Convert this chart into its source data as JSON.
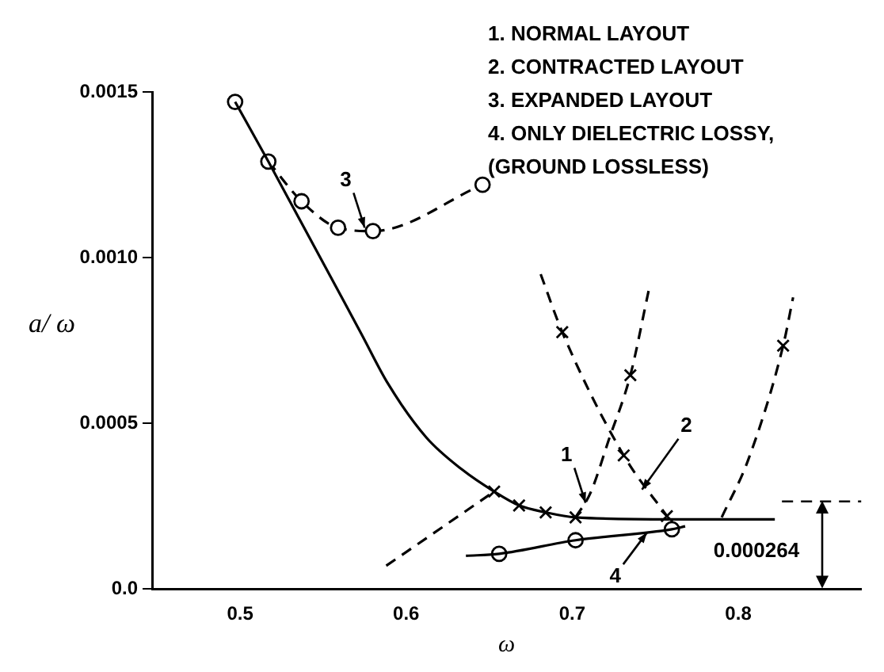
{
  "chart_data": {
    "type": "line",
    "xlabel": "ω",
    "ylabel": "a/ ω",
    "xlim": [
      0.447,
      0.874
    ],
    "xticks": [
      0.5,
      0.6,
      0.7,
      0.8
    ],
    "ylim": [
      0,
      0.0015
    ],
    "yticks": [
      {
        "value": 0,
        "label": "0.0"
      },
      0.0005,
      {
        "value": 0.001,
        "label": "0.0010"
      },
      0.0015
    ],
    "grid": false,
    "legend": false,
    "series": [
      {
        "type": "line",
        "color": "#000000",
        "marker": "none",
        "line_style": "solid",
        "x": [
          0.497,
          0.517,
          0.573,
          0.589,
          0.612,
          0.634,
          0.653,
          0.668,
          0.684,
          0.702,
          0.76,
          0.822
        ],
        "values": [
          0.00147,
          0.00129,
          0.00077,
          0.00062,
          0.000458,
          0.000359,
          0.000294,
          0.000252,
          0.000231,
          0.000216,
          0.00021,
          0.00021
        ]
      },
      {
        "type": "line",
        "color": "#000000",
        "marker": "circle",
        "line_style": "dashed",
        "x": [
          0.517,
          0.537,
          0.559,
          0.58,
          0.646
        ],
        "values": [
          0.00129,
          0.00117,
          0.00109,
          0.00108,
          0.00122
        ]
      },
      {
        "type": "line",
        "color": "#000000",
        "marker": "none",
        "line_style": "dashed",
        "x": [
          0.702,
          0.711,
          0.722,
          0.735,
          0.746
        ],
        "values": [
          0.000216,
          0.00029,
          0.00045,
          0.000645,
          0.0009
        ]
      },
      {
        "type": "line",
        "color": "#000000",
        "marker": "none",
        "line_style": "dashed",
        "x": [
          0.681,
          0.694,
          0.731,
          0.757
        ],
        "values": [
          0.00095,
          0.000775,
          0.000403,
          0.00022
        ]
      },
      {
        "type": "line",
        "color": "#000000",
        "marker": "none",
        "line_style": "dashed",
        "x": [
          0.79,
          0.806,
          0.827,
          0.833
        ],
        "values": [
          0.000216,
          0.00039,
          0.000734,
          0.00088
        ]
      },
      {
        "type": "line",
        "color": "#000000",
        "marker": "none",
        "line_style": "dashed",
        "x": [
          0.588,
          0.653
        ],
        "values": [
          7e-05,
          0.000294
        ]
      },
      {
        "type": "line",
        "color": "#000000",
        "marker": "none",
        "line_style": "solid",
        "x": [
          0.636,
          0.656,
          0.702,
          0.76,
          0.768
        ],
        "values": [
          0.0001,
          0.000106,
          0.000147,
          0.00018,
          0.000189
        ]
      },
      {
        "type": "scatter",
        "color": "#000000",
        "marker": "circle",
        "x": [
          0.497,
          0.656,
          0.702,
          0.76
        ],
        "values": [
          0.00147,
          0.000106,
          0.000147,
          0.00018
        ]
      },
      {
        "type": "scatter",
        "color": "#000000",
        "marker": "cross",
        "x": [
          0.653,
          0.668,
          0.684,
          0.702,
          0.757,
          0.694,
          0.731,
          0.735,
          0.827
        ],
        "values": [
          0.000294,
          0.000252,
          0.000231,
          0.000216,
          0.00022,
          0.000775,
          0.000403,
          0.000645,
          0.000734
        ]
      }
    ],
    "ref_lines": [
      {
        "axis": "y",
        "value": 0.000264,
        "label": "0.000264",
        "line_style": "dashed",
        "color": "#000000"
      }
    ],
    "annotations": [
      "1. NORMAL LAYOUT",
      "2. CONTRACTED LAYOUT",
      "3. EXPANDED LAYOUT",
      "4. ONLY DIELECTRIC LOSSY,",
      "(GROUND LOSSLESS)",
      {
        "text": "3",
        "x": 0.575,
        "y": 0.00109
      },
      {
        "text": "1",
        "x": 0.708,
        "y": 0.00026
      },
      {
        "text": "2",
        "x": 0.742,
        "y": 0.0003
      },
      {
        "text": "4",
        "x": 0.745,
        "y": 0.00017
      }
    ]
  }
}
